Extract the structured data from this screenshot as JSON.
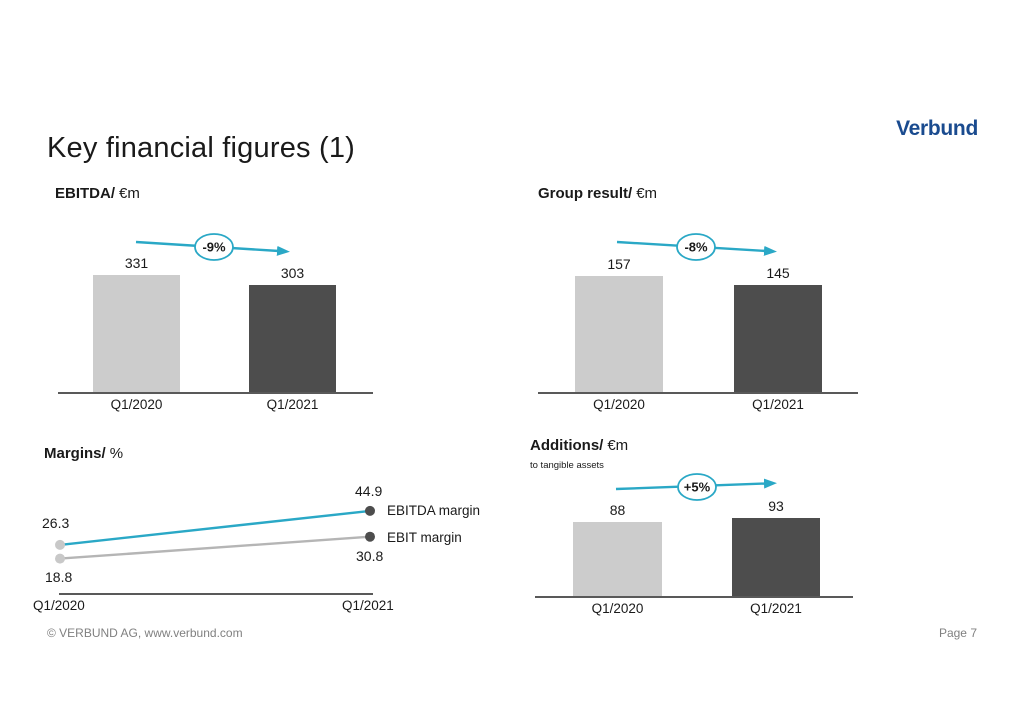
{
  "slide": {
    "title": "Key financial figures (1)",
    "logo": "Verbund",
    "footer_left": "© VERBUND AG, www.verbund.com",
    "footer_right": "Page 7"
  },
  "colors": {
    "accent_teal": "#2aa8c6",
    "bar_q1_2020": "#cccccc",
    "bar_q1_2021": "#4d4d4d",
    "logo_blue": "#1a4b8f",
    "axis_gray": "#595959",
    "footer_gray": "#808080"
  },
  "chart_data": [
    {
      "id": "ebitda",
      "type": "bar",
      "title_bold": "EBITDA/",
      "title_rest": "€m",
      "categories": [
        "Q1/2020",
        "Q1/2021"
      ],
      "values": [
        331,
        303
      ],
      "change_label": "-9%",
      "legend_position": "none",
      "grid": false
    },
    {
      "id": "group-result",
      "type": "bar",
      "title_bold": "Group result/",
      "title_rest": "€m",
      "categories": [
        "Q1/2020",
        "Q1/2021"
      ],
      "values": [
        157,
        145
      ],
      "change_label": "-8%",
      "legend_position": "none",
      "grid": false
    },
    {
      "id": "margins",
      "type": "line",
      "title_bold": "Margins/",
      "title_rest": "%",
      "categories": [
        "Q1/2020",
        "Q1/2021"
      ],
      "series": [
        {
          "name": "EBITDA margin",
          "values": [
            26.3,
            44.9
          ],
          "color": "#2aa8c6"
        },
        {
          "name": "EBIT margin",
          "values": [
            18.8,
            30.8
          ],
          "color": "#b5b5b5"
        }
      ],
      "legend_position": "right-of-line-ends",
      "grid": false
    },
    {
      "id": "additions",
      "type": "bar",
      "title_bold": "Additions/",
      "title_rest": "€m",
      "subtitle": "to tangible assets",
      "categories": [
        "Q1/2020",
        "Q1/2021"
      ],
      "values": [
        88,
        93
      ],
      "change_label": "+5%",
      "legend_position": "none",
      "grid": false
    }
  ]
}
